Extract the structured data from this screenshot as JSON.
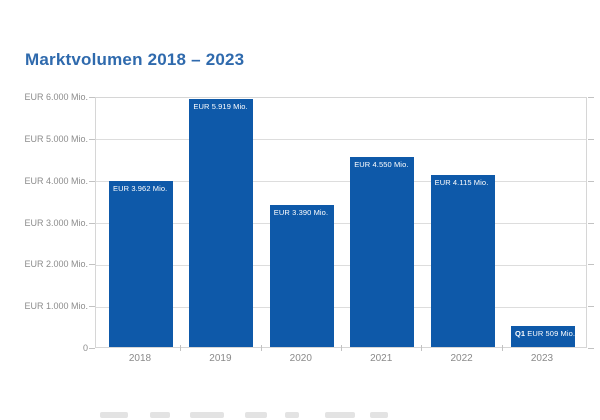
{
  "page_title": "Marktvolumen 2018 – 2023",
  "colors": {
    "bar": "#0e59a9",
    "title_text": "#2f6aad",
    "grid": "#dddddd",
    "plot_border": "#d6d6d6",
    "axis_text": "#8c8c8c",
    "bar_label_text": "#ffffff"
  },
  "chart_data": {
    "type": "bar",
    "title": "Marktvolumen 2018 – 2023",
    "categories": [
      "2018",
      "2019",
      "2020",
      "2021",
      "2022",
      "2023"
    ],
    "values": [
      3962,
      5919,
      3390,
      4550,
      4115,
      509
    ],
    "bar_labels": [
      {
        "prefix": "",
        "text": "EUR 3.962 Mio."
      },
      {
        "prefix": "",
        "text": "EUR 5.919 Mio."
      },
      {
        "prefix": "",
        "text": "EUR 3.390 Mio."
      },
      {
        "prefix": "",
        "text": "EUR 4.550 Mio."
      },
      {
        "prefix": "",
        "text": "EUR 4.115 Mio."
      },
      {
        "prefix": "Q1",
        "text": "EUR 509 Mio."
      }
    ],
    "yticks": [
      {
        "value": 6000,
        "label": "EUR 6.000 Mio."
      },
      {
        "value": 5000,
        "label": "EUR 5.000 Mio."
      },
      {
        "value": 4000,
        "label": "EUR 4.000 Mio."
      },
      {
        "value": 3000,
        "label": "EUR 3.000 Mio."
      },
      {
        "value": 2000,
        "label": "EUR 2.000 Mio."
      },
      {
        "value": 1000,
        "label": "EUR 1.000 Mio."
      },
      {
        "value": 0,
        "label": "0"
      }
    ],
    "ylim": [
      0,
      6000
    ],
    "xlabel": "",
    "ylabel": "",
    "grid": true,
    "legend": false
  }
}
